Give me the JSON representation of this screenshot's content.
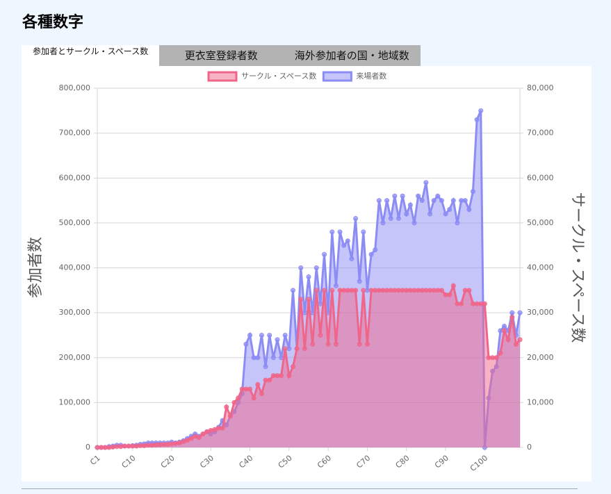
{
  "heading": "各種数字",
  "tabs": [
    "参加者とサークル・スペース数",
    "更衣室登録者数",
    "海外参加者の国・地域数"
  ],
  "chart_data": {
    "type": "area",
    "ylabel": "参加者数",
    "y2label": "サークル・スペース数",
    "grid": true,
    "legend": "top",
    "categories": [
      "C1",
      null,
      null,
      null,
      null,
      null,
      null,
      null,
      null,
      "C10",
      null,
      null,
      null,
      null,
      null,
      null,
      null,
      null,
      null,
      "C20",
      null,
      null,
      null,
      null,
      null,
      null,
      null,
      null,
      null,
      "C30",
      null,
      null,
      null,
      null,
      null,
      null,
      null,
      null,
      null,
      "C40",
      null,
      null,
      null,
      null,
      null,
      null,
      null,
      null,
      null,
      "C50",
      null,
      null,
      null,
      null,
      null,
      null,
      null,
      null,
      null,
      "C60",
      null,
      null,
      null,
      null,
      null,
      null,
      null,
      null,
      null,
      "C70",
      null,
      null,
      null,
      null,
      null,
      null,
      null,
      null,
      null,
      "C80",
      null,
      null,
      null,
      null,
      null,
      null,
      null,
      null,
      null,
      "C90",
      null,
      null,
      null,
      null,
      null,
      null,
      null,
      null,
      null,
      "C100",
      null,
      null,
      null,
      null,
      null,
      null,
      null,
      null,
      null
    ],
    "ylim": [
      0,
      800000
    ],
    "yticks": [
      0,
      {
        "value": 100000,
        "label": "100,000"
      },
      {
        "value": 200000,
        "label": "200,000"
      },
      {
        "value": 300000,
        "label": "300,000"
      },
      {
        "value": 400000,
        "label": "400,000"
      },
      {
        "value": 500000,
        "label": "500,000"
      },
      {
        "value": 600000,
        "label": "600,000"
      },
      {
        "value": 700000,
        "label": "700,000"
      },
      {
        "value": 800000,
        "label": "800,000"
      }
    ],
    "y2lim": [
      0,
      80000
    ],
    "y2ticks": [
      0,
      {
        "value": 10000,
        "label": "10,000"
      },
      {
        "value": 20000,
        "label": "20,000"
      },
      {
        "value": 30000,
        "label": "30,000"
      },
      {
        "value": 40000,
        "label": "40,000"
      },
      {
        "value": 50000,
        "label": "50,000"
      },
      {
        "value": 60000,
        "label": "60,000"
      },
      {
        "value": 70000,
        "label": "70,000"
      },
      {
        "value": 80000,
        "label": "80,000"
      }
    ],
    "series": [
      {
        "name": "サークル・スペース数",
        "color": "#f0668a",
        "axis": "y2",
        "values": [
          0,
          0,
          0,
          0,
          100,
          200,
          200,
          300,
          300,
          300,
          300,
          400,
          400,
          500,
          500,
          600,
          600,
          700,
          700,
          800,
          900,
          1000,
          1300,
          1600,
          2000,
          2500,
          2200,
          3000,
          3500,
          3800,
          4000,
          4300,
          4300,
          9000,
          7000,
          10000,
          11000,
          13000,
          13000,
          13000,
          11000,
          14000,
          12000,
          15000,
          15000,
          16000,
          16000,
          16000,
          22000,
          16000,
          18000,
          22000,
          33000,
          22000,
          33000,
          23000,
          35000,
          25000,
          35000,
          23000,
          35000,
          23000,
          35000,
          35000,
          35000,
          35000,
          35000,
          23000,
          35000,
          23000,
          35000,
          35000,
          35000,
          35000,
          35000,
          35000,
          35000,
          35000,
          35000,
          35000,
          35000,
          35000,
          35000,
          35000,
          35000,
          35000,
          35000,
          35000,
          35000,
          34000,
          34000,
          36000,
          32000,
          32000,
          35000,
          35000,
          32000,
          32000,
          32000,
          32000,
          20000,
          20000,
          20000,
          21000,
          26000,
          24000,
          29000,
          23000,
          24000
        ]
      },
      {
        "name": "来場者数",
        "color": "#8c8cf5",
        "axis": "y",
        "values": [
          0,
          0,
          0,
          2000,
          3000,
          5000,
          5000,
          3000,
          3000,
          4000,
          5000,
          7000,
          8000,
          10000,
          10000,
          10000,
          10000,
          10000,
          10000,
          12000,
          10000,
          12000,
          15000,
          20000,
          25000,
          30000,
          25000,
          30000,
          35000,
          30000,
          35000,
          45000,
          60000,
          50000,
          70000,
          80000,
          100000,
          120000,
          230000,
          250000,
          200000,
          200000,
          250000,
          180000,
          250000,
          200000,
          240000,
          200000,
          250000,
          220000,
          350000,
          220000,
          400000,
          300000,
          380000,
          300000,
          400000,
          320000,
          430000,
          300000,
          480000,
          360000,
          480000,
          450000,
          460000,
          420000,
          510000,
          370000,
          480000,
          350000,
          430000,
          440000,
          550000,
          500000,
          550000,
          510000,
          560000,
          510000,
          560000,
          520000,
          540000,
          500000,
          560000,
          550000,
          590000,
          520000,
          550000,
          560000,
          550000,
          520000,
          530000,
          550000,
          500000,
          550000,
          550000,
          530000,
          570000,
          730000,
          750000,
          0,
          110000,
          170000,
          180000,
          260000,
          270000,
          260000,
          300000,
          250000,
          300000
        ]
      }
    ]
  }
}
